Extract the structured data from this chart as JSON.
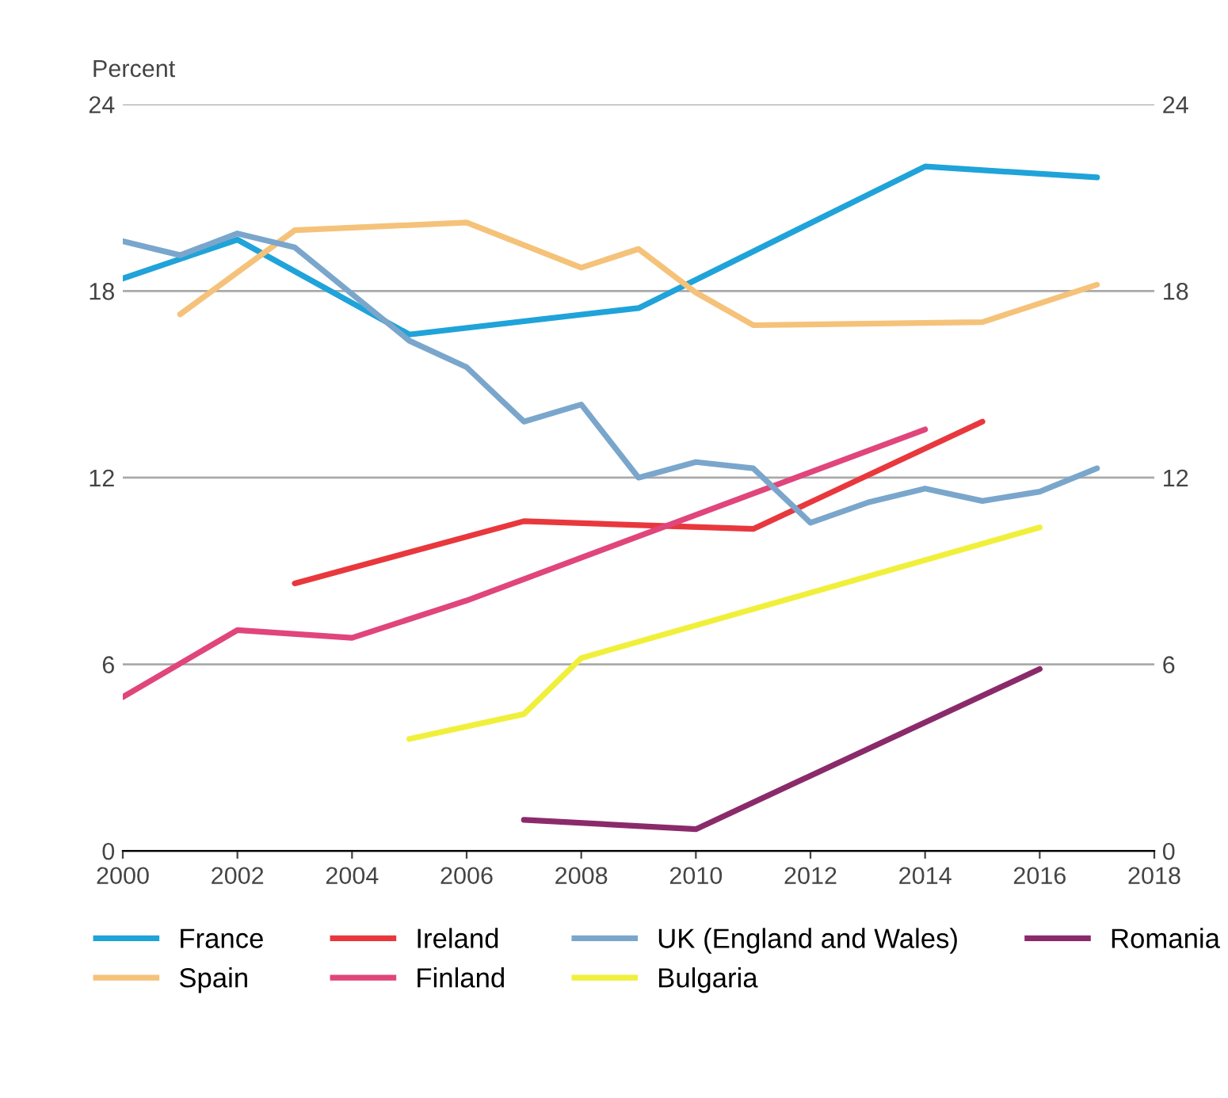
{
  "chart_data": {
    "type": "line",
    "ylabel": "Percent",
    "xlim": [
      2000,
      2018
    ],
    "xticks": [
      2000,
      2002,
      2004,
      2006,
      2008,
      2010,
      2012,
      2014,
      2016,
      2018
    ],
    "ylim": [
      0,
      24
    ],
    "yticks": [
      0,
      6,
      12,
      18,
      24
    ],
    "y2lim": [
      0,
      24
    ],
    "y2ticks": [
      0,
      6,
      12,
      18,
      24
    ],
    "grid": "y",
    "legend": "bottom",
    "marker": "none",
    "line_style": "solid",
    "series": [
      {
        "name": "France",
        "color": "#1fa3d9",
        "x": [
          2000,
          2002,
          2005,
          2009,
          2014,
          2017
        ],
        "values": [
          18.4,
          19.65,
          16.6,
          17.45,
          22.0,
          21.65
        ]
      },
      {
        "name": "Spain",
        "color": "#f5c27a",
        "x": [
          2001,
          2003,
          2006,
          2008,
          2009,
          2010,
          2011,
          2015,
          2017
        ],
        "values": [
          17.25,
          19.95,
          20.2,
          18.75,
          19.35,
          17.95,
          16.9,
          17.0,
          18.2
        ]
      },
      {
        "name": "Ireland",
        "color": "#e8383d",
        "x": [
          2003,
          2007,
          2011,
          2015
        ],
        "values": [
          8.6,
          10.6,
          10.35,
          13.8
        ]
      },
      {
        "name": "Finland",
        "color": "#e0457b",
        "x": [
          2000,
          2002,
          2004,
          2006,
          2014
        ],
        "values": [
          4.95,
          7.1,
          6.85,
          8.05,
          13.55
        ]
      },
      {
        "name": "UK (England and Wales)",
        "color": "#7aa6cc",
        "x": [
          2000,
          2001,
          2002,
          2003,
          2005,
          2006,
          2007,
          2008,
          2009,
          2010,
          2011,
          2012,
          2013,
          2014,
          2015,
          2016,
          2017
        ],
        "values": [
          19.6,
          19.15,
          19.85,
          19.4,
          16.4,
          15.55,
          13.8,
          14.35,
          12.0,
          12.5,
          12.3,
          10.55,
          11.2,
          11.65,
          11.25,
          11.55,
          12.3
        ]
      },
      {
        "name": "Bulgaria",
        "color": "#f0f03c",
        "x": [
          2005,
          2007,
          2008,
          2016
        ],
        "values": [
          3.6,
          4.4,
          6.2,
          10.4
        ]
      },
      {
        "name": "Romania",
        "color": "#8b2a6b",
        "x": [
          2007,
          2010,
          2016
        ],
        "values": [
          1.0,
          0.7,
          5.85
        ]
      }
    ]
  }
}
